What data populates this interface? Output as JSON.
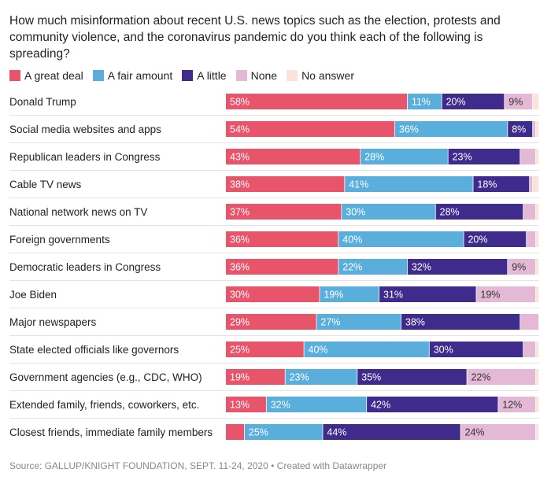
{
  "title": "How much misinformation about recent U.S. news topics such as the election, protests and community violence, and the coronavirus pandemic do you think each of the following is spreading?",
  "source": "Source: GALLUP/KNIGHT FOUNDATION, SEPT. 11-24, 2020 • Created with Datawrapper",
  "chart_data": {
    "type": "bar",
    "orientation": "horizontal",
    "stacked": true,
    "normalized_percent": true,
    "xlim": [
      0,
      100
    ],
    "legend_position": "top-left",
    "categories": [
      "Donald Trump",
      "Social media websites and apps",
      "Republican leaders in Congress",
      "Cable TV news",
      "National network news on TV",
      "Foreign governments",
      "Democratic leaders in Congress",
      "Joe Biden",
      "Major newspapers",
      "State elected officials like governors",
      "Government agencies (e.g., CDC, WHO)",
      "Extended family, friends, coworkers, etc.",
      "Closest friends, immediate family members"
    ],
    "series": [
      {
        "name": "A great deal",
        "color": "#e8546a",
        "values": [
          58,
          54,
          43,
          38,
          37,
          36,
          36,
          30,
          29,
          25,
          19,
          13,
          6
        ]
      },
      {
        "name": "A fair amount",
        "color": "#5aaedc",
        "values": [
          11,
          36,
          28,
          41,
          30,
          40,
          22,
          19,
          27,
          40,
          23,
          32,
          25
        ]
      },
      {
        "name": "A little",
        "color": "#3e2b8c",
        "values": [
          20,
          8,
          23,
          18,
          28,
          20,
          32,
          31,
          38,
          30,
          35,
          42,
          44
        ]
      },
      {
        "name": "None",
        "color": "#e3b9d6",
        "values": [
          9,
          1,
          5,
          1,
          4,
          3,
          9,
          19,
          6,
          4,
          22,
          12,
          24
        ]
      },
      {
        "name": "No answer",
        "color": "#fbe3dc",
        "values": [
          2,
          1,
          1,
          2,
          1,
          1,
          1,
          1,
          0,
          1,
          1,
          1,
          1
        ]
      }
    ],
    "data_labels": [
      [
        "58%",
        "11%",
        "20%",
        "9%",
        ""
      ],
      [
        "54%",
        "36%",
        "8%",
        "",
        ""
      ],
      [
        "43%",
        "28%",
        "23%",
        "",
        ""
      ],
      [
        "38%",
        "41%",
        "18%",
        "",
        ""
      ],
      [
        "37%",
        "30%",
        "28%",
        "",
        ""
      ],
      [
        "36%",
        "40%",
        "20%",
        "",
        ""
      ],
      [
        "36%",
        "22%",
        "32%",
        "9%",
        ""
      ],
      [
        "30%",
        "19%",
        "31%",
        "19%",
        ""
      ],
      [
        "29%",
        "27%",
        "38%",
        "",
        ""
      ],
      [
        "25%",
        "40%",
        "30%",
        "",
        ""
      ],
      [
        "19%",
        "23%",
        "35%",
        "22%",
        ""
      ],
      [
        "13%",
        "32%",
        "42%",
        "12%",
        ""
      ],
      [
        "",
        "25%",
        "44%",
        "24%",
        ""
      ]
    ]
  }
}
